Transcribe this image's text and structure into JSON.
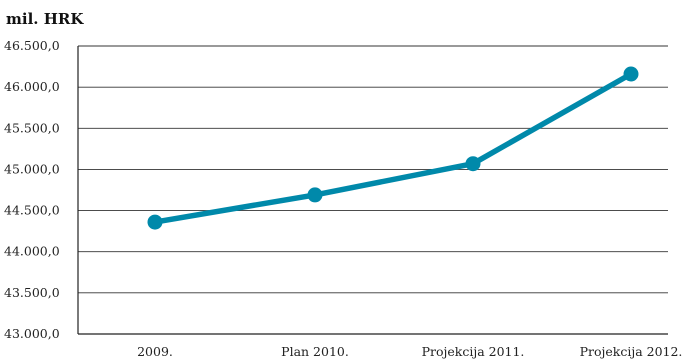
{
  "chart_data": {
    "type": "line",
    "unit_label": "mil. HRK",
    "categories": [
      "2009.",
      "Plan 2010.",
      "Projekcija 2011.",
      "Projekcija 2012."
    ],
    "series": [
      {
        "values": [
          44360,
          44690,
          45070,
          46160
        ]
      }
    ],
    "y_ticks": [
      "43.000,0",
      "43.500,0",
      "44.000,0",
      "44.500,0",
      "45.000,0",
      "45.500,0",
      "46.000,0",
      "46.500,0"
    ],
    "ylim": [
      43000,
      46500
    ],
    "grid": true,
    "line_color": "#0089aa"
  }
}
